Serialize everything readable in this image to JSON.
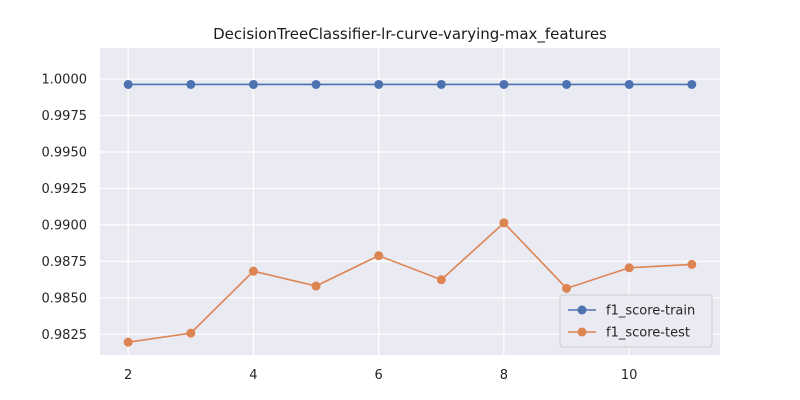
{
  "chart_data": {
    "type": "line",
    "title": "DecisionTreeClassifier-lr-curve-varying-max_features",
    "xlabel": "",
    "ylabel": "",
    "x": [
      2,
      3,
      4,
      5,
      6,
      7,
      8,
      9,
      10,
      11
    ],
    "xlim": [
      1.55,
      11.45
    ],
    "ylim": [
      0.98108,
      1.00213
    ],
    "xticks": [
      2,
      4,
      6,
      8,
      10
    ],
    "yticks": [
      0.9825,
      0.985,
      0.9875,
      0.99,
      0.9925,
      0.995,
      0.9975,
      1.0
    ],
    "xtick_labels": [
      "2",
      "4",
      "6",
      "8",
      "10"
    ],
    "ytick_labels": [
      "0.9825",
      "0.9850",
      "0.9875",
      "0.9900",
      "0.9925",
      "0.9950",
      "0.9975",
      "1.0000"
    ],
    "grid": true,
    "legend_position": "lower-right",
    "series": [
      {
        "name": "f1_score-train",
        "color": "#4c72b0",
        "values": [
          0.99963,
          0.99963,
          0.99963,
          0.99963,
          0.99963,
          0.99963,
          0.99963,
          0.99963,
          0.99963,
          0.99963
        ]
      },
      {
        "name": "f1_score-test",
        "color": "#dd8452",
        "values": [
          0.98196,
          0.98258,
          0.98683,
          0.98581,
          0.98789,
          0.98624,
          0.99014,
          0.98565,
          0.98706,
          0.98729
        ]
      }
    ]
  }
}
